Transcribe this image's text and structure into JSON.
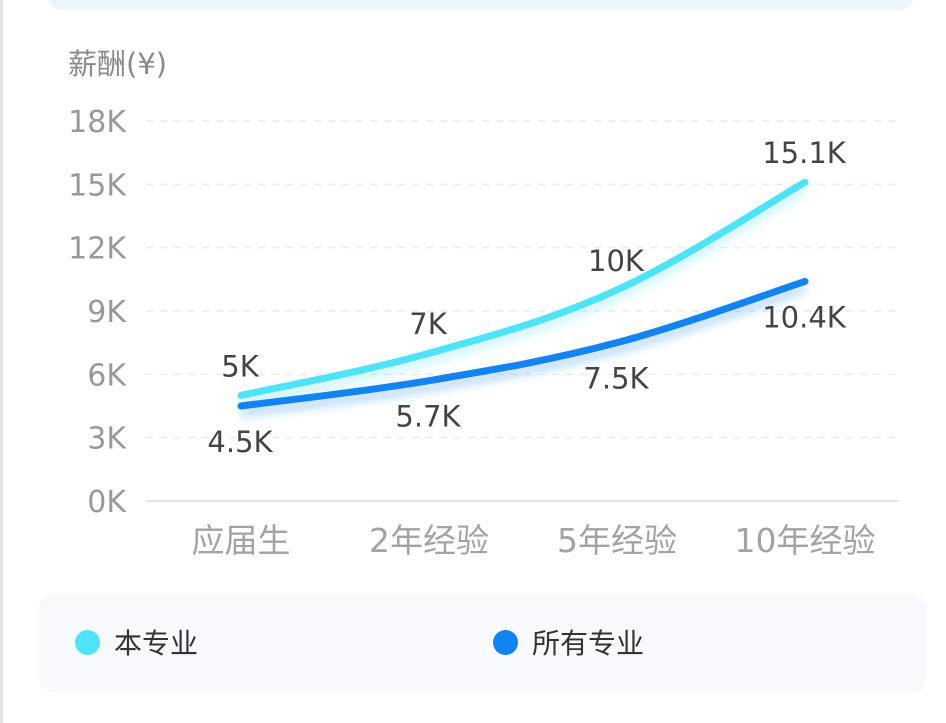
{
  "chart_data": {
    "type": "line",
    "ylabel": "薪酬(¥)",
    "categories": [
      "应届生",
      "2年经验",
      "5年经验",
      "10年经验"
    ],
    "yticks": [
      "0K",
      "3K",
      "6K",
      "9K",
      "12K",
      "15K",
      "18K"
    ],
    "ylim": [
      0,
      18
    ],
    "grid": true,
    "legend_position": "bottom",
    "series": [
      {
        "name": "本专业",
        "color": "#4fe3f7",
        "values": [
          5,
          7,
          10,
          15.1
        ],
        "labels": [
          "5K",
          "7K",
          "10K",
          "15.1K"
        ]
      },
      {
        "name": "所有专业",
        "color": "#1483f2",
        "values": [
          4.5,
          5.7,
          7.5,
          10.4
        ],
        "labels": [
          "4.5K",
          "5.7K",
          "7.5K",
          "10.4K"
        ]
      }
    ]
  }
}
